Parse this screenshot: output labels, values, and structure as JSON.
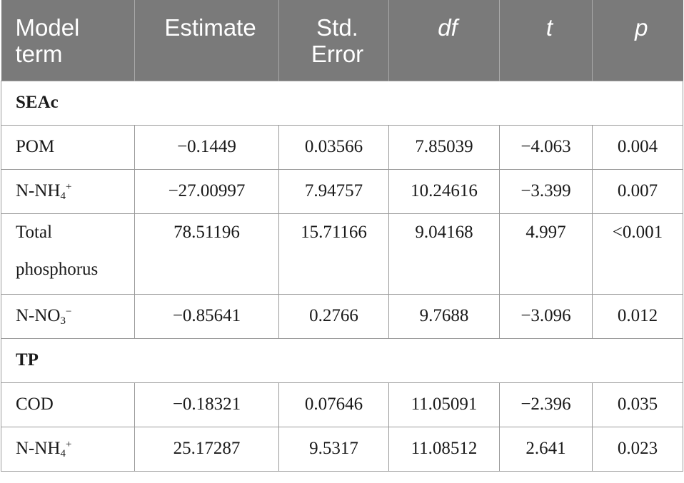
{
  "header": {
    "model_term": "Model term",
    "estimate": "Estimate",
    "std_error": "Std. Error",
    "df": "df",
    "t": "t",
    "p": "p"
  },
  "sections": [
    {
      "title": "SEAc",
      "rows": [
        {
          "term": "POM",
          "estimate": "−0.1449",
          "std_error": "0.03566",
          "df": "7.85039",
          "t": "−4.063",
          "p": "0.004"
        },
        {
          "term_base": "N-NH",
          "term_sub": "4",
          "term_sup": "+",
          "estimate": "−27.00997",
          "std_error": "7.94757",
          "df": "10.24616",
          "t": "−3.399",
          "p": "0.007"
        },
        {
          "term": "Total phosphorus",
          "estimate": "78.51196",
          "std_error": "15.71166",
          "df": "9.04168",
          "t": "4.997",
          "p": "<0.001"
        },
        {
          "term_base": "N-NO",
          "term_sub": "3",
          "term_sup": "−",
          "estimate": "−0.85641",
          "std_error": "0.2766",
          "df": "9.7688",
          "t": "−3.096",
          "p": "0.012"
        }
      ]
    },
    {
      "title": "TP",
      "rows": [
        {
          "term": "COD",
          "estimate": "−0.18321",
          "std_error": "0.07646",
          "df": "11.05091",
          "t": "−2.396",
          "p": "0.035"
        },
        {
          "term_base": "N-NH",
          "term_sub": "4",
          "term_sup": "+",
          "estimate": "25.17287",
          "std_error": "9.5317",
          "df": "11.08512",
          "t": "2.641",
          "p": "0.023"
        }
      ]
    }
  ]
}
